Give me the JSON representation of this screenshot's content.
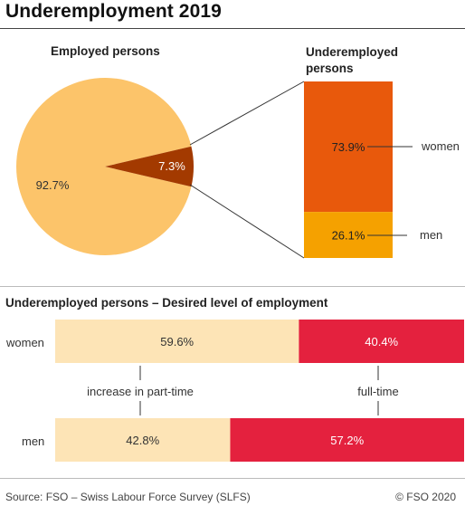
{
  "title": "Underemployment 2019",
  "pie": {
    "subtitle": "Employed persons",
    "slices": [
      {
        "label": "92.7%",
        "value": 92.7,
        "color": "#FCC46A"
      },
      {
        "label": "7.3%",
        "value": 7.3,
        "color": "#A33A00"
      }
    ]
  },
  "stack": {
    "subtitle_line1": "Underemployed",
    "subtitle_line2": "persons",
    "women": {
      "label": "women",
      "value_label": "73.9%",
      "value": 73.9,
      "color": "#E8590C"
    },
    "men": {
      "label": "men",
      "value_label": "26.1%",
      "value": 26.1,
      "color": "#F5A100"
    }
  },
  "desired": {
    "subtitle": "Underemployed persons – Desired level of employment",
    "rows": [
      {
        "label": "women",
        "part_time_label": "59.6%",
        "part_time": 59.6,
        "full_time_label": "40.4%",
        "full_time": 40.4
      },
      {
        "label": "men",
        "part_time_label": "42.8%",
        "part_time": 42.8,
        "full_time_label": "57.2%",
        "full_time": 57.2
      }
    ],
    "part_time_caption": "increase in part-time",
    "full_time_caption": "full-time",
    "part_time_color": "#FDE4B6",
    "full_time_color": "#E4213E"
  },
  "chart_data": [
    {
      "type": "pie",
      "title": "Employed persons",
      "categories": [
        "",
        ""
      ],
      "values": [
        92.7,
        7.3
      ]
    },
    {
      "type": "bar",
      "title": "Underemployed persons",
      "categories": [
        "women",
        "men"
      ],
      "values": [
        73.9,
        26.1
      ]
    },
    {
      "type": "bar",
      "title": "Underemployed persons – Desired level of employment",
      "categories": [
        "women",
        "men"
      ],
      "series": [
        {
          "name": "increase in part-time",
          "values": [
            59.6,
            42.8
          ]
        },
        {
          "name": "full-time",
          "values": [
            40.4,
            57.2
          ]
        }
      ]
    }
  ],
  "footer": {
    "source": "Source: FSO – Swiss Labour Force Survey (SLFS)",
    "copyright": "© FSO 2020"
  }
}
